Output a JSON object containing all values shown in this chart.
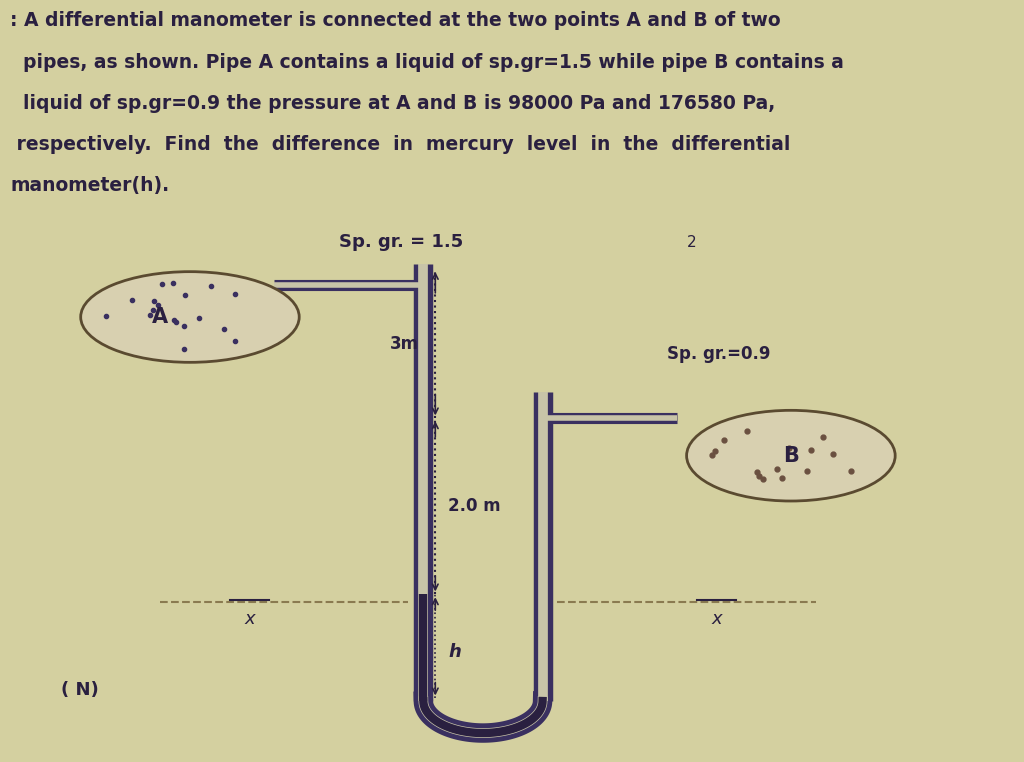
{
  "bg_top_color": "#d4d0a0",
  "diagram_bg": "#e8e4c0",
  "text_color": "#2a2040",
  "pipe_color": "#3a3060",
  "ellipse_edge_color": "#5a4a30",
  "ellipse_fill_A": "#d8d0b0",
  "ellipse_fill_B": "#d8d0b0",
  "dot_color_A": "#3a3060",
  "dot_color_B": "#6a5040",
  "mercury_color": "#2a2040",
  "dashed_color": "#8a7a50",
  "title_lines": [
    ": A differential manometer is connected at the two points A and B of two",
    "  pipes, as shown. Pipe A contains a liquid of sp.gr=1.5 while pipe B contains a",
    "  liquid of sp.gr=0.9 the pressure at A and B is 98000 Pa and 176580 Pa,",
    " respectively.  Find  the  difference  in  mercury  level  in  the  differential",
    "manometer(h)."
  ],
  "sp_gr_A_text": "Sp. gr. = 1.5",
  "sp_gr_B_text": "Sp. gr.=0.9",
  "label_3m": "3m",
  "label_20m": "2.0 m",
  "label_h": "h",
  "label_xbar_left": "x",
  "label_xbar_right": "x",
  "label_A": "A",
  "label_B": "B",
  "label_N": "( N)",
  "label_2": "2"
}
